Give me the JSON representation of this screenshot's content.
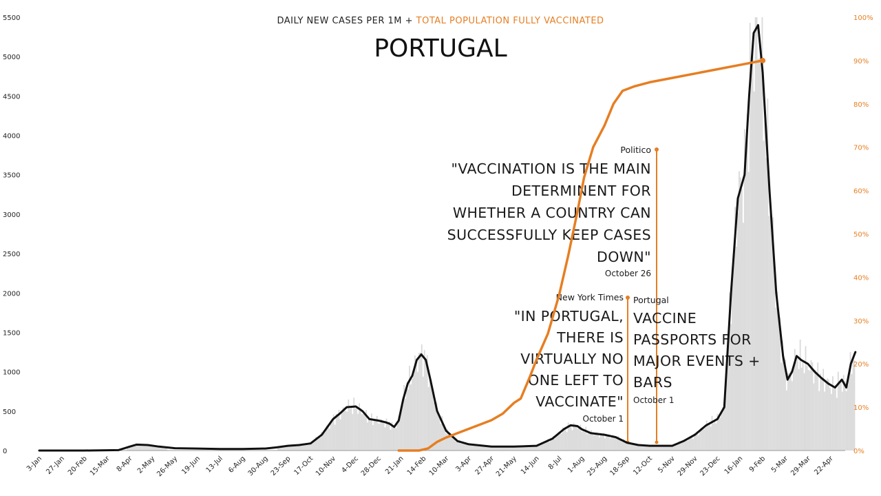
{
  "chart_data": {
    "type": "line",
    "title_top_left": "DAILY NEW CASES PER 1M + ",
    "title_top_right": "TOTAL POPULATION FULLY VACCINATED",
    "title": "PORTUGAL",
    "colors": {
      "cases": "#111111",
      "vaccinated": "#e67e22",
      "bars": "#d9d9d9",
      "text": "#1a1a1a"
    },
    "ylim_left": [
      0,
      5500
    ],
    "ylim_right": [
      0,
      100
    ],
    "left_ticks": [
      "0",
      "500",
      "1000",
      "1500",
      "2000",
      "2500",
      "3000",
      "3500",
      "4000",
      "4500",
      "5000",
      "5500"
    ],
    "right_ticks": [
      "0%",
      "10%",
      "20%",
      "30%",
      "40%",
      "50%",
      "60%",
      "70%",
      "80%",
      "90%",
      "100%"
    ],
    "x_labels": [
      "3-Jan",
      "27-Jan",
      "20-Feb",
      "15-Mar",
      "8-Apr",
      "2-May",
      "26-May",
      "19-Jun",
      "13-Jul",
      "6-Aug",
      "30-Aug",
      "23-Sep",
      "17-Oct",
      "10-Nov",
      "4-Dec",
      "28-Dec",
      "21-Jan",
      "14-Feb",
      "10-Mar",
      "3-Apr",
      "27-Apr",
      "21-May",
      "14-Jun",
      "8-Jul",
      "1-Aug",
      "25-Aug",
      "18-Sep",
      "12-Oct",
      "5-Nov",
      "29-Nov",
      "23-Dec",
      "16-Jan",
      "9-Feb",
      "5-Mar",
      "29-Mar",
      "22-Apr"
    ],
    "series": [
      {
        "name": "DAILY NEW CASES PER 1M",
        "axis": "left",
        "points": [
          [
            0,
            0
          ],
          [
            2,
            0
          ],
          [
            3.5,
            5
          ],
          [
            4,
            50
          ],
          [
            4.3,
            75
          ],
          [
            4.8,
            70
          ],
          [
            5.3,
            50
          ],
          [
            6,
            30
          ],
          [
            7,
            25
          ],
          [
            8,
            20
          ],
          [
            9,
            20
          ],
          [
            10,
            25
          ],
          [
            10.5,
            40
          ],
          [
            11,
            60
          ],
          [
            11.5,
            70
          ],
          [
            12,
            90
          ],
          [
            12.5,
            200
          ],
          [
            13,
            400
          ],
          [
            13.3,
            470
          ],
          [
            13.6,
            550
          ],
          [
            14,
            560
          ],
          [
            14.3,
            500
          ],
          [
            14.6,
            400
          ],
          [
            15,
            380
          ],
          [
            15.3,
            360
          ],
          [
            15.5,
            340
          ],
          [
            15.7,
            300
          ],
          [
            15.9,
            380
          ],
          [
            16.1,
            650
          ],
          [
            16.3,
            850
          ],
          [
            16.5,
            950
          ],
          [
            16.7,
            1150
          ],
          [
            16.9,
            1220
          ],
          [
            17.1,
            1150
          ],
          [
            17.3,
            900
          ],
          [
            17.6,
            500
          ],
          [
            18,
            250
          ],
          [
            18.5,
            120
          ],
          [
            19,
            80
          ],
          [
            20,
            50
          ],
          [
            21,
            50
          ],
          [
            22,
            60
          ],
          [
            22.7,
            150
          ],
          [
            23.2,
            270
          ],
          [
            23.5,
            320
          ],
          [
            23.8,
            310
          ],
          [
            24,
            270
          ],
          [
            24.4,
            220
          ],
          [
            25,
            200
          ],
          [
            25.5,
            170
          ],
          [
            26,
            100
          ],
          [
            26.5,
            70
          ],
          [
            27,
            60
          ],
          [
            28,
            60
          ],
          [
            28.5,
            120
          ],
          [
            29,
            200
          ],
          [
            29.5,
            320
          ],
          [
            30,
            400
          ],
          [
            30.3,
            550
          ],
          [
            30.6,
            2000
          ],
          [
            30.9,
            3200
          ],
          [
            31.2,
            3500
          ],
          [
            31.4,
            4500
          ],
          [
            31.6,
            5300
          ],
          [
            31.8,
            5400
          ],
          [
            32,
            4800
          ],
          [
            32.3,
            3300
          ],
          [
            32.6,
            2000
          ],
          [
            32.9,
            1200
          ],
          [
            33.1,
            900
          ],
          [
            33.3,
            1000
          ],
          [
            33.5,
            1200
          ],
          [
            33.7,
            1150
          ],
          [
            34,
            1100
          ],
          [
            34.3,
            1000
          ],
          [
            34.6,
            920
          ],
          [
            34.9,
            850
          ],
          [
            35.2,
            800
          ],
          [
            35.5,
            900
          ],
          [
            35.7,
            800
          ],
          [
            35.9,
            1100
          ],
          [
            36.1,
            1250
          ]
        ]
      },
      {
        "name": "TOTAL POPULATION FULLY VACCINATED",
        "axis": "right",
        "points": [
          [
            15.9,
            0
          ],
          [
            16.8,
            0
          ],
          [
            17.2,
            0.5
          ],
          [
            17.6,
            2
          ],
          [
            18,
            3
          ],
          [
            18.5,
            4
          ],
          [
            19,
            5
          ],
          [
            19.5,
            6
          ],
          [
            20,
            7
          ],
          [
            20.5,
            8.5
          ],
          [
            21,
            11
          ],
          [
            21.3,
            12
          ],
          [
            21.7,
            17
          ],
          [
            22,
            21
          ],
          [
            22.5,
            27
          ],
          [
            23,
            36
          ],
          [
            23.4,
            45
          ],
          [
            23.8,
            55
          ],
          [
            24.1,
            63
          ],
          [
            24.5,
            70
          ],
          [
            25,
            75
          ],
          [
            25.4,
            80
          ],
          [
            25.8,
            83
          ],
          [
            26.3,
            84
          ],
          [
            27,
            85
          ],
          [
            28,
            86
          ],
          [
            29,
            87
          ],
          [
            30,
            88
          ],
          [
            31,
            89
          ],
          [
            32,
            90
          ]
        ]
      }
    ],
    "bars_note": "",
    "annotations": [
      {
        "source": "Politico",
        "quote": [
          "\"VACCINATION IS THE MAIN",
          "DETERMINENT FOR",
          "WHETHER A COUNTRY CAN",
          "SUCCESSFULLY KEEP CASES",
          "DOWN\""
        ],
        "date": "October 26"
      },
      {
        "source": "New York Times",
        "quote": [
          "\"IN PORTUGAL,",
          "THERE IS",
          "VIRTUALLY NO",
          "ONE LEFT TO",
          "VACCINATE\""
        ],
        "date": "October 1"
      },
      {
        "source": "Portugal",
        "quote": [
          "VACCINE",
          "PASSPORTS FOR",
          "MAJOR EVENTS +",
          "BARS"
        ],
        "date": "October 1"
      }
    ]
  }
}
